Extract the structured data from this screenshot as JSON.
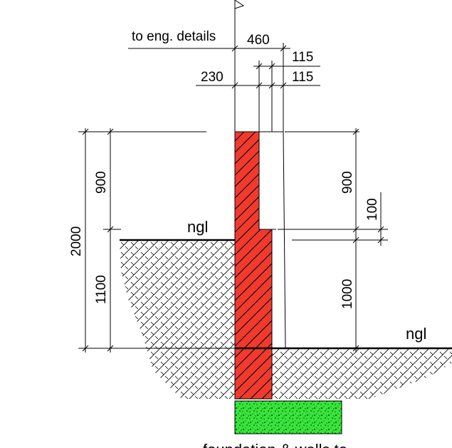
{
  "colors": {
    "wall_fill": "#f03a2e",
    "footing_fill": "#37e63a",
    "line": "#000000",
    "background": "#ffffff"
  },
  "labels": {
    "to_eng_details": "to eng. details",
    "ngl_left": "ngl",
    "ngl_right": "ngl",
    "foundation_note": "foundation & walls to"
  },
  "dimensions": {
    "top_460": "460",
    "top_115_upper": "115",
    "top_230": "230",
    "top_115_lower": "115",
    "left_2000": "2000",
    "left_900": "900",
    "left_1100": "1100",
    "right_900": "900",
    "right_100": "100",
    "right_1000": "1000"
  }
}
